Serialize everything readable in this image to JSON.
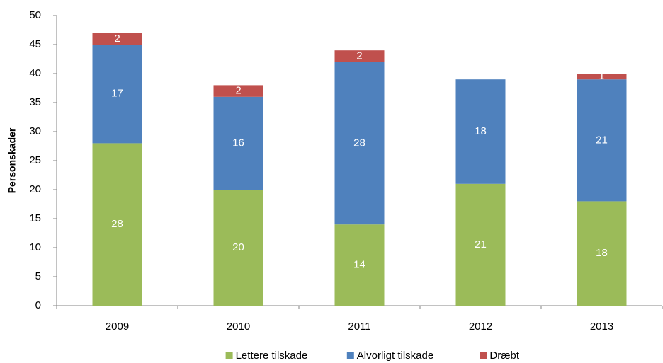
{
  "chart_data": {
    "type": "stacked_bar",
    "y_label": "Personskader",
    "categories": [
      "2009",
      "2010",
      "2011",
      "2012",
      "2013"
    ],
    "series": [
      {
        "name": "Lettere tilskade",
        "color": "#9bbb59",
        "values": [
          28,
          20,
          14,
          21,
          18
        ]
      },
      {
        "name": "Alvorligt tilskade",
        "color": "#4f81bd",
        "values": [
          17,
          16,
          28,
          18,
          21
        ]
      },
      {
        "name": "Dræbt",
        "color": "#c0504d",
        "values": [
          2,
          2,
          2,
          0,
          1
        ]
      }
    ],
    "ylim": [
      0,
      50
    ],
    "yticks": [
      0,
      5,
      10,
      15,
      20,
      25,
      30,
      35,
      40,
      45,
      50
    ],
    "grid": false,
    "legend": "bottom"
  }
}
